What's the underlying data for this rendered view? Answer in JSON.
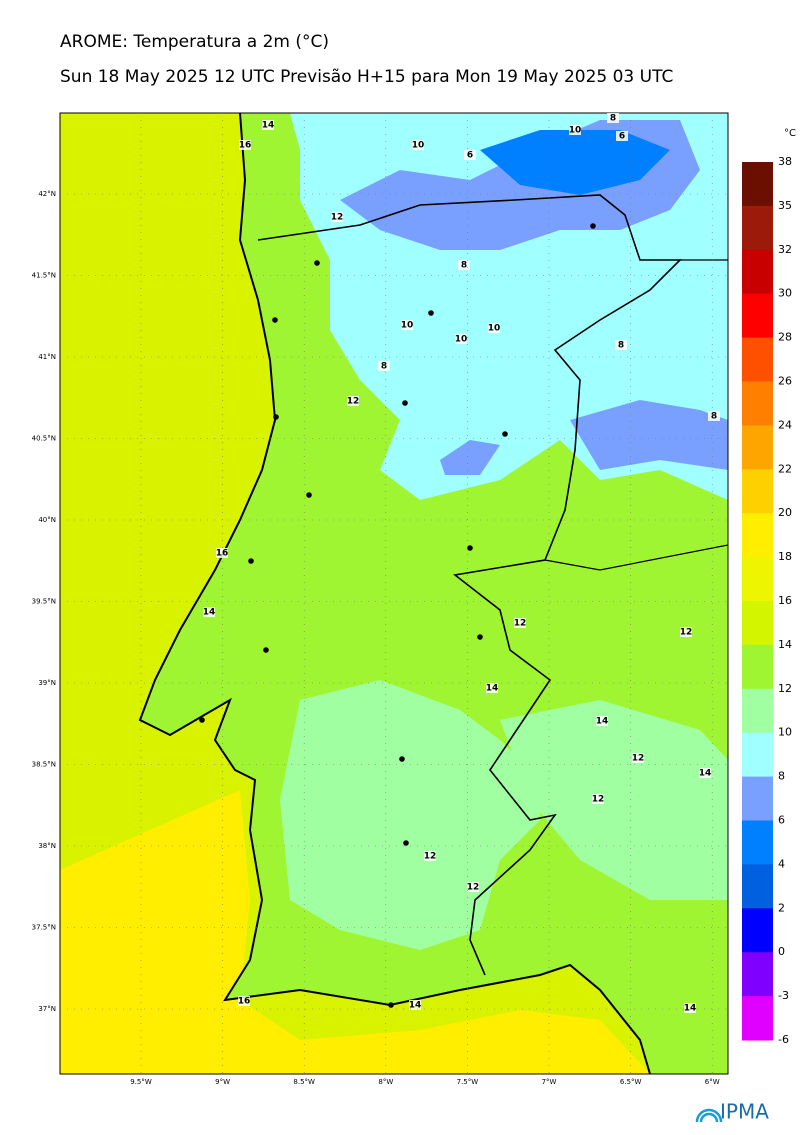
{
  "header": {
    "title": "AROME: Temperatura a 2m (°C)",
    "subtitle": "Sun 18 May 2025 12 UTC Previsão H+15 para Mon 19 May 2025 03 UTC"
  },
  "map": {
    "lat_ticks": [
      "42°N",
      "41.5°N",
      "41°N",
      "40.5°N",
      "40°N",
      "39.5°N",
      "39°N",
      "38.5°N",
      "38°N",
      "37.5°N",
      "37°N"
    ],
    "lon_ticks": [
      "9.5°W",
      "9°W",
      "8.5°W",
      "8°W",
      "7.5°W",
      "7°W",
      "6.5°W",
      "6°W"
    ],
    "contour_labels": [
      "14",
      "16",
      "10",
      "6",
      "10",
      "8",
      "6",
      "12",
      "8",
      "10",
      "10",
      "10",
      "8",
      "8",
      "12",
      "8",
      "16",
      "14",
      "12",
      "12",
      "14",
      "14",
      "12",
      "14",
      "12",
      "12",
      "12",
      "16",
      "14",
      "14"
    ]
  },
  "colorbar": {
    "unit": "°C",
    "levels": [
      38,
      35,
      32,
      30,
      28,
      26,
      24,
      22,
      20,
      18,
      16,
      14,
      12,
      10,
      8,
      6,
      4,
      2,
      0,
      -3,
      -6
    ],
    "colors": [
      "#6b0f00",
      "#9c1a0a",
      "#c80000",
      "#ff0000",
      "#ff5000",
      "#ff8000",
      "#ffa500",
      "#ffd000",
      "#ffee00",
      "#eef500",
      "#d4f500",
      "#a0f532",
      "#a0ffa0",
      "#a0ffff",
      "#7aa0ff",
      "#0080ff",
      "#0060e0",
      "#0000ff",
      "#8000ff",
      "#e000ff"
    ]
  },
  "footer": {
    "logo": "IPMA"
  }
}
